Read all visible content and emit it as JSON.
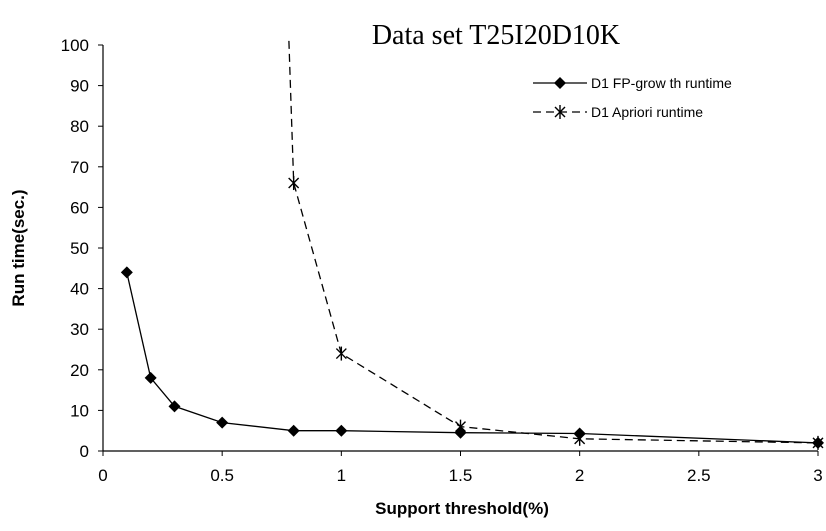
{
  "chart_data": {
    "type": "line",
    "title": "Data set T25I20D10K",
    "xlabel": "Support threshold(%)",
    "ylabel": "Run time(sec.)",
    "xlim": [
      0,
      3
    ],
    "ylim": [
      0,
      100
    ],
    "x_ticks": [
      0,
      0.5,
      1,
      1.5,
      2,
      2.5,
      3
    ],
    "y_ticks": [
      0,
      10,
      20,
      30,
      40,
      50,
      60,
      70,
      80,
      90,
      100
    ],
    "x_tick_labels": [
      "0",
      "0.5",
      "1",
      "1.5",
      "2",
      "2.5",
      "3"
    ],
    "y_tick_labels": [
      "0",
      "10",
      "20",
      "30",
      "40",
      "50",
      "60",
      "70",
      "80",
      "90",
      "100"
    ],
    "grid": false,
    "legend_position": "top-right",
    "series": [
      {
        "name": "D1 FP-grow th runtime",
        "marker": "diamond",
        "line_style": "solid",
        "color": "#000000",
        "x": [
          0.1,
          0.2,
          0.3,
          0.5,
          0.8,
          1.0,
          1.5,
          2.0,
          3.0
        ],
        "y": [
          44,
          18,
          11,
          7,
          5,
          5,
          4.5,
          4.3,
          2
        ]
      },
      {
        "name": "D1 Apriori runtime",
        "marker": "star",
        "line_style": "dashed",
        "color": "#000000",
        "x": [
          0.78,
          0.8,
          1.0,
          1.5,
          2.0,
          3.0
        ],
        "y": [
          101,
          66,
          24,
          6,
          3,
          2
        ],
        "marked_points": [
          false,
          true,
          true,
          true,
          true,
          true
        ]
      }
    ]
  }
}
